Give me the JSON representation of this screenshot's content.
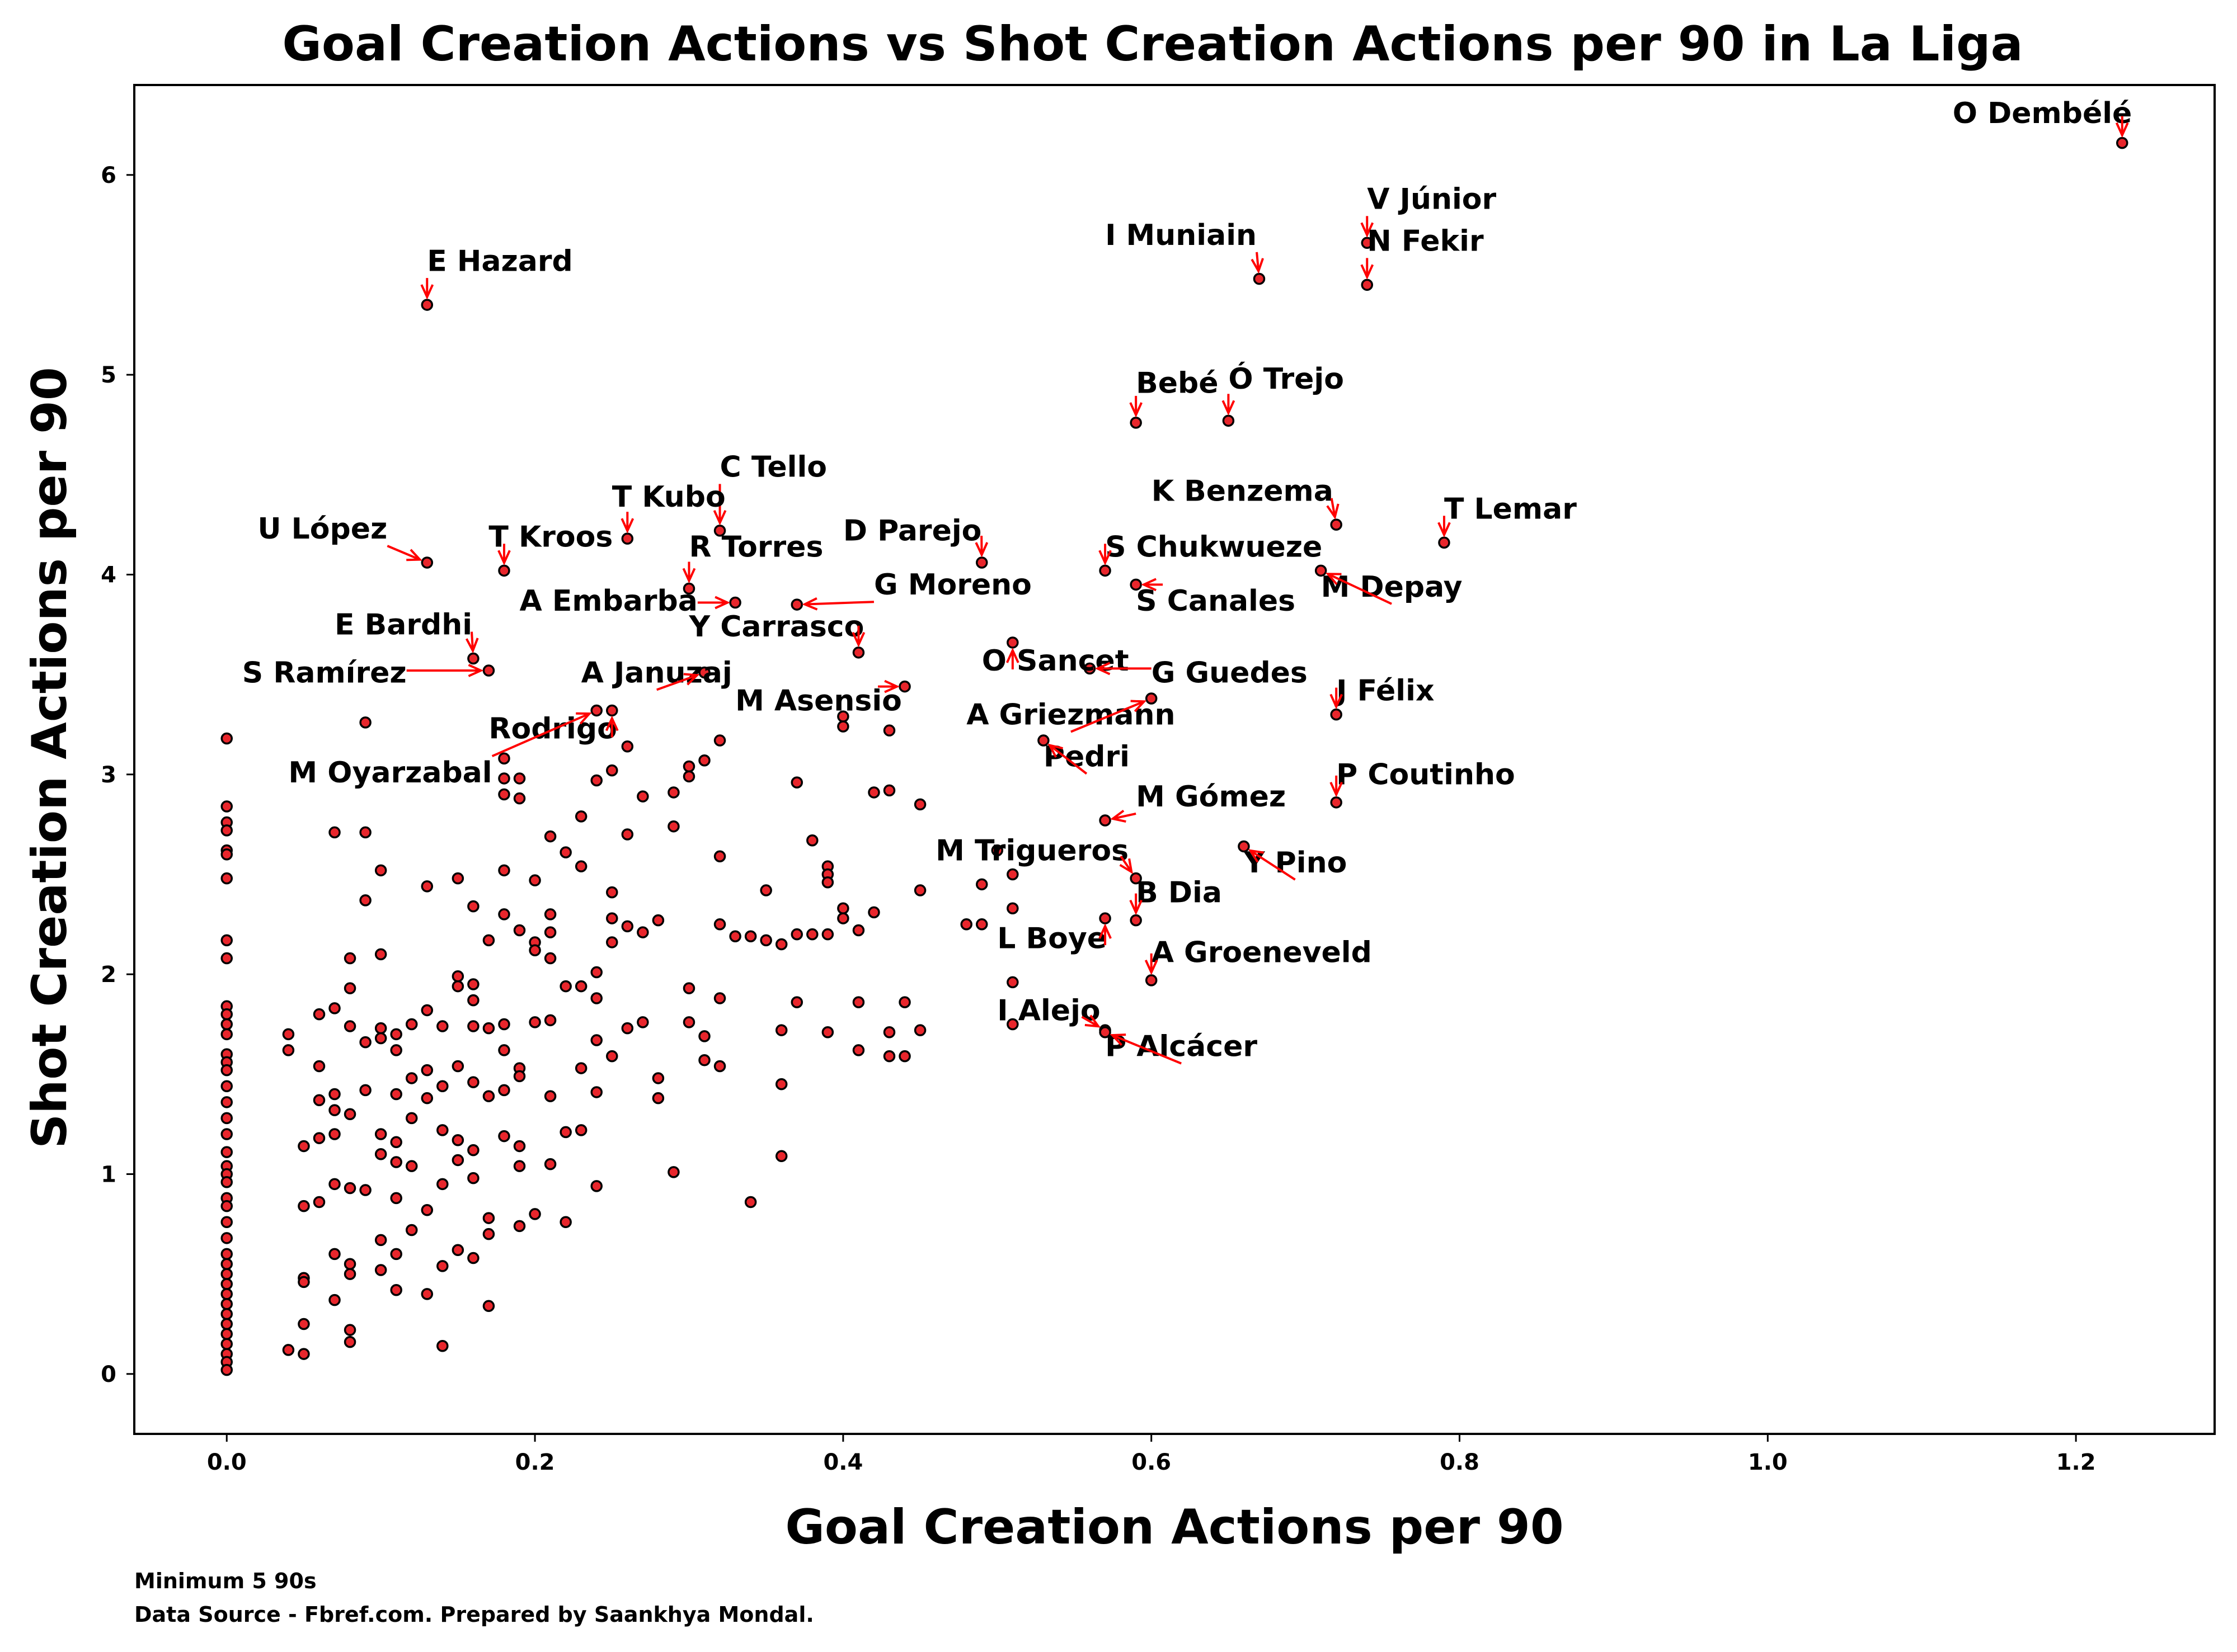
{
  "chart_data": {
    "type": "scatter",
    "title": "Goal Creation Actions vs Shot Creation Actions per 90 in La Liga",
    "xlabel": "Goal Creation Actions per 90",
    "ylabel": "Shot Creation Actions per 90",
    "xlim": [
      -0.06,
      1.29
    ],
    "ylim": [
      -0.3,
      6.45
    ],
    "xticks": [
      0.0,
      0.2,
      0.4,
      0.6,
      0.8,
      1.0,
      1.2
    ],
    "xtick_labels": [
      "0.0",
      "0.2",
      "0.4",
      "0.6",
      "0.8",
      "1.0",
      "1.2"
    ],
    "yticks": [
      0,
      1,
      2,
      3,
      4,
      5,
      6
    ],
    "ytick_labels": [
      "0",
      "1",
      "2",
      "3",
      "4",
      "5",
      "6"
    ],
    "grid": false,
    "colors": {
      "marker_fill": "#e8262c",
      "marker_edge": "#000000",
      "arrow": "#ff0000",
      "text": "#000000",
      "background": "#ffffff"
    },
    "footnotes": [
      "Minimum 5 90s",
      "Data Source - Fbref.com. Prepared by Saankhya Mondal."
    ],
    "annotations": [
      {
        "name": "O Dembélé",
        "x": 1.23,
        "y": 6.16,
        "tx": 1.12,
        "ty": 6.26
      },
      {
        "name": "V Júnior",
        "x": 0.74,
        "y": 5.66,
        "tx": 0.74,
        "ty": 5.83
      },
      {
        "name": "N Fekir",
        "x": 0.74,
        "y": 5.45,
        "tx": 0.74,
        "ty": 5.62
      },
      {
        "name": "I Muniain",
        "x": 0.67,
        "y": 5.48,
        "tx": 0.57,
        "ty": 5.65
      },
      {
        "name": "E Hazard",
        "x": 0.13,
        "y": 5.35,
        "tx": 0.13,
        "ty": 5.52
      },
      {
        "name": "Bebé",
        "x": 0.59,
        "y": 4.76,
        "tx": 0.59,
        "ty": 4.91
      },
      {
        "name": "Ó Trejo",
        "x": 0.65,
        "y": 4.77,
        "tx": 0.65,
        "ty": 4.93
      },
      {
        "name": "C Tello",
        "x": 0.32,
        "y": 4.22,
        "tx": 0.32,
        "ty": 4.49
      },
      {
        "name": "T Kubo",
        "x": 0.26,
        "y": 4.18,
        "tx": 0.25,
        "ty": 4.34
      },
      {
        "name": "K Benzema",
        "x": 0.72,
        "y": 4.25,
        "tx": 0.6,
        "ty": 4.37
      },
      {
        "name": "T Lemar",
        "x": 0.79,
        "y": 4.16,
        "tx": 0.79,
        "ty": 4.28
      },
      {
        "name": "U López",
        "x": 0.13,
        "y": 4.06,
        "tx": 0.02,
        "ty": 4.18
      },
      {
        "name": "T Kroos",
        "x": 0.18,
        "y": 4.02,
        "tx": 0.17,
        "ty": 4.14
      },
      {
        "name": "D Parejo",
        "x": 0.49,
        "y": 4.06,
        "tx": 0.4,
        "ty": 4.17
      },
      {
        "name": "S Chukwueze",
        "x": 0.57,
        "y": 4.02,
        "tx": 0.57,
        "ty": 4.09
      },
      {
        "name": "R Torres",
        "x": 0.3,
        "y": 3.93,
        "tx": 0.3,
        "ty": 4.09
      },
      {
        "name": "G Moreno",
        "x": 0.37,
        "y": 3.85,
        "tx": 0.42,
        "ty": 3.9
      },
      {
        "name": "A Embarba",
        "x": 0.33,
        "y": 3.86,
        "tx": 0.19,
        "ty": 3.82
      },
      {
        "name": "S Canales",
        "x": 0.59,
        "y": 3.95,
        "tx": 0.59,
        "ty": 3.82
      },
      {
        "name": "M Depay",
        "x": 0.71,
        "y": 4.02,
        "tx": 0.71,
        "ty": 3.89
      },
      {
        "name": "Y Carrasco",
        "x": 0.41,
        "y": 3.61,
        "tx": 0.3,
        "ty": 3.69
      },
      {
        "name": "E Bardhi",
        "x": 0.16,
        "y": 3.58,
        "tx": 0.07,
        "ty": 3.7
      },
      {
        "name": "O Sancet",
        "x": 0.51,
        "y": 3.66,
        "tx": 0.49,
        "ty": 3.52
      },
      {
        "name": "S Ramírez",
        "x": 0.17,
        "y": 3.52,
        "tx": 0.01,
        "ty": 3.46
      },
      {
        "name": "A Januzaj",
        "x": 0.31,
        "y": 3.51,
        "tx": 0.23,
        "ty": 3.46
      },
      {
        "name": "G Guedes",
        "x": 0.56,
        "y": 3.53,
        "tx": 0.6,
        "ty": 3.46
      },
      {
        "name": "M Asensio",
        "x": 0.44,
        "y": 3.44,
        "tx": 0.33,
        "ty": 3.32
      },
      {
        "name": "J Félix",
        "x": 0.72,
        "y": 3.3,
        "tx": 0.72,
        "ty": 3.37
      },
      {
        "name": "A Griezmann",
        "x": 0.6,
        "y": 3.38,
        "tx": 0.48,
        "ty": 3.25
      },
      {
        "name": "Rodrigo",
        "x": 0.25,
        "y": 3.32,
        "tx": 0.17,
        "ty": 3.18
      },
      {
        "name": "Pedri",
        "x": 0.53,
        "y": 3.17,
        "tx": 0.53,
        "ty": 3.04
      },
      {
        "name": "M Oyarzabal",
        "x": 0.24,
        "y": 3.32,
        "tx": 0.04,
        "ty": 2.96
      },
      {
        "name": "P Coutinho",
        "x": 0.72,
        "y": 2.86,
        "tx": 0.72,
        "ty": 2.95
      },
      {
        "name": "M Gómez",
        "x": 0.57,
        "y": 2.77,
        "tx": 0.59,
        "ty": 2.84
      },
      {
        "name": "M Trigueros",
        "x": 0.59,
        "y": 2.48,
        "tx": 0.46,
        "ty": 2.57
      },
      {
        "name": "Y Pino",
        "x": 0.66,
        "y": 2.64,
        "tx": 0.66,
        "ty": 2.51
      },
      {
        "name": "B Dia",
        "x": 0.59,
        "y": 2.27,
        "tx": 0.59,
        "ty": 2.36
      },
      {
        "name": "L Boye",
        "x": 0.57,
        "y": 2.28,
        "tx": 0.5,
        "ty": 2.13
      },
      {
        "name": "A Groeneveld",
        "x": 0.6,
        "y": 1.97,
        "tx": 0.6,
        "ty": 2.06
      },
      {
        "name": "I Alejo",
        "x": 0.57,
        "y": 1.72,
        "tx": 0.5,
        "ty": 1.77
      },
      {
        "name": "P Alcácer",
        "x": 0.57,
        "y": 1.71,
        "tx": 0.57,
        "ty": 1.59
      }
    ],
    "points": [
      [
        0,
        3.18
      ],
      [
        0,
        2.84
      ],
      [
        0,
        2.76
      ],
      [
        0,
        2.72
      ],
      [
        0,
        2.62
      ],
      [
        0,
        2.6
      ],
      [
        0,
        2.48
      ],
      [
        0,
        2.17
      ],
      [
        0,
        2.08
      ],
      [
        0,
        1.84
      ],
      [
        0,
        1.8
      ],
      [
        0,
        1.75
      ],
      [
        0,
        1.7
      ],
      [
        0,
        1.6
      ],
      [
        0,
        1.56
      ],
      [
        0,
        1.52
      ],
      [
        0,
        1.44
      ],
      [
        0,
        1.36
      ],
      [
        0,
        1.28
      ],
      [
        0,
        1.2
      ],
      [
        0,
        1.11
      ],
      [
        0,
        1.04
      ],
      [
        0,
        1.0
      ],
      [
        0,
        0.96
      ],
      [
        0,
        0.88
      ],
      [
        0,
        0.84
      ],
      [
        0,
        0.76
      ],
      [
        0,
        0.68
      ],
      [
        0,
        0.6
      ],
      [
        0,
        0.55
      ],
      [
        0,
        0.5
      ],
      [
        0,
        0.45
      ],
      [
        0,
        0.4
      ],
      [
        0,
        0.35
      ],
      [
        0,
        0.3
      ],
      [
        0,
        0.25
      ],
      [
        0,
        0.2
      ],
      [
        0,
        0.15
      ],
      [
        0,
        0.1
      ],
      [
        0,
        0.06
      ],
      [
        0,
        0.02
      ],
      [
        0.04,
        1.7
      ],
      [
        0.04,
        1.62
      ],
      [
        0.04,
        0.12
      ],
      [
        0.05,
        1.14
      ],
      [
        0.05,
        0.84
      ],
      [
        0.05,
        0.48
      ],
      [
        0.05,
        0.46
      ],
      [
        0.05,
        0.25
      ],
      [
        0.05,
        0.1
      ],
      [
        0.06,
        1.8
      ],
      [
        0.06,
        1.54
      ],
      [
        0.06,
        1.37
      ],
      [
        0.06,
        1.18
      ],
      [
        0.06,
        0.86
      ],
      [
        0.07,
        2.71
      ],
      [
        0.07,
        1.83
      ],
      [
        0.07,
        1.4
      ],
      [
        0.07,
        1.32
      ],
      [
        0.07,
        1.2
      ],
      [
        0.07,
        0.95
      ],
      [
        0.07,
        0.6
      ],
      [
        0.07,
        0.37
      ],
      [
        0.08,
        2.08
      ],
      [
        0.08,
        1.93
      ],
      [
        0.08,
        1.74
      ],
      [
        0.08,
        1.3
      ],
      [
        0.08,
        0.93
      ],
      [
        0.08,
        0.55
      ],
      [
        0.08,
        0.5
      ],
      [
        0.08,
        0.22
      ],
      [
        0.08,
        0.16
      ],
      [
        0.09,
        3.26
      ],
      [
        0.09,
        2.71
      ],
      [
        0.09,
        2.37
      ],
      [
        0.09,
        1.66
      ],
      [
        0.09,
        1.42
      ],
      [
        0.09,
        0.92
      ],
      [
        0.1,
        2.52
      ],
      [
        0.1,
        2.1
      ],
      [
        0.1,
        1.73
      ],
      [
        0.1,
        1.68
      ],
      [
        0.1,
        1.2
      ],
      [
        0.1,
        1.1
      ],
      [
        0.1,
        0.67
      ],
      [
        0.1,
        0.52
      ],
      [
        0.11,
        1.7
      ],
      [
        0.11,
        1.62
      ],
      [
        0.11,
        1.4
      ],
      [
        0.11,
        1.16
      ],
      [
        0.11,
        1.06
      ],
      [
        0.11,
        0.88
      ],
      [
        0.11,
        0.6
      ],
      [
        0.11,
        0.42
      ],
      [
        0.12,
        1.75
      ],
      [
        0.12,
        1.48
      ],
      [
        0.12,
        1.28
      ],
      [
        0.12,
        1.04
      ],
      [
        0.12,
        0.72
      ],
      [
        0.13,
        2.44
      ],
      [
        0.13,
        1.82
      ],
      [
        0.13,
        1.52
      ],
      [
        0.13,
        1.38
      ],
      [
        0.13,
        0.82
      ],
      [
        0.13,
        0.4
      ],
      [
        0.14,
        1.74
      ],
      [
        0.14,
        1.44
      ],
      [
        0.14,
        1.22
      ],
      [
        0.14,
        0.95
      ],
      [
        0.14,
        0.54
      ],
      [
        0.14,
        0.14
      ],
      [
        0.15,
        2.48
      ],
      [
        0.15,
        1.99
      ],
      [
        0.15,
        1.94
      ],
      [
        0.15,
        1.54
      ],
      [
        0.15,
        1.17
      ],
      [
        0.15,
        1.07
      ],
      [
        0.15,
        0.62
      ],
      [
        0.16,
        2.34
      ],
      [
        0.16,
        1.95
      ],
      [
        0.16,
        1.87
      ],
      [
        0.16,
        1.74
      ],
      [
        0.16,
        1.46
      ],
      [
        0.16,
        1.12
      ],
      [
        0.16,
        0.98
      ],
      [
        0.16,
        0.58
      ],
      [
        0.17,
        2.17
      ],
      [
        0.17,
        1.73
      ],
      [
        0.17,
        1.39
      ],
      [
        0.17,
        0.78
      ],
      [
        0.17,
        0.7
      ],
      [
        0.17,
        0.34
      ],
      [
        0.18,
        3.08
      ],
      [
        0.18,
        2.98
      ],
      [
        0.18,
        2.9
      ],
      [
        0.18,
        2.52
      ],
      [
        0.18,
        2.3
      ],
      [
        0.18,
        1.75
      ],
      [
        0.18,
        1.62
      ],
      [
        0.18,
        1.42
      ],
      [
        0.18,
        1.19
      ],
      [
        0.19,
        2.98
      ],
      [
        0.19,
        2.88
      ],
      [
        0.19,
        2.22
      ],
      [
        0.19,
        1.53
      ],
      [
        0.19,
        1.49
      ],
      [
        0.19,
        1.14
      ],
      [
        0.19,
        1.04
      ],
      [
        0.19,
        0.74
      ],
      [
        0.2,
        2.47
      ],
      [
        0.2,
        2.16
      ],
      [
        0.2,
        2.12
      ],
      [
        0.2,
        1.76
      ],
      [
        0.2,
        0.8
      ],
      [
        0.21,
        2.69
      ],
      [
        0.21,
        2.3
      ],
      [
        0.21,
        2.21
      ],
      [
        0.21,
        2.08
      ],
      [
        0.21,
        1.77
      ],
      [
        0.21,
        1.39
      ],
      [
        0.21,
        1.05
      ],
      [
        0.22,
        2.61
      ],
      [
        0.22,
        1.94
      ],
      [
        0.22,
        1.21
      ],
      [
        0.22,
        0.76
      ],
      [
        0.23,
        2.79
      ],
      [
        0.23,
        2.54
      ],
      [
        0.23,
        1.94
      ],
      [
        0.23,
        1.53
      ],
      [
        0.23,
        1.22
      ],
      [
        0.24,
        2.97
      ],
      [
        0.24,
        2.01
      ],
      [
        0.24,
        1.88
      ],
      [
        0.24,
        1.67
      ],
      [
        0.24,
        1.41
      ],
      [
        0.24,
        0.94
      ],
      [
        0.25,
        3.02
      ],
      [
        0.25,
        2.41
      ],
      [
        0.25,
        2.28
      ],
      [
        0.25,
        2.16
      ],
      [
        0.25,
        1.59
      ],
      [
        0.26,
        3.14
      ],
      [
        0.26,
        2.7
      ],
      [
        0.26,
        2.24
      ],
      [
        0.26,
        1.73
      ],
      [
        0.27,
        2.89
      ],
      [
        0.27,
        2.21
      ],
      [
        0.27,
        1.76
      ],
      [
        0.28,
        2.27
      ],
      [
        0.28,
        1.48
      ],
      [
        0.28,
        1.38
      ],
      [
        0.29,
        2.91
      ],
      [
        0.29,
        2.74
      ],
      [
        0.29,
        1.01
      ],
      [
        0.3,
        3.04
      ],
      [
        0.3,
        2.99
      ],
      [
        0.3,
        1.93
      ],
      [
        0.3,
        1.76
      ],
      [
        0.31,
        3.07
      ],
      [
        0.31,
        1.69
      ],
      [
        0.31,
        1.57
      ],
      [
        0.32,
        3.17
      ],
      [
        0.32,
        2.59
      ],
      [
        0.32,
        2.25
      ],
      [
        0.32,
        1.88
      ],
      [
        0.32,
        1.54
      ],
      [
        0.33,
        2.19
      ],
      [
        0.34,
        2.19
      ],
      [
        0.34,
        0.86
      ],
      [
        0.35,
        2.42
      ],
      [
        0.35,
        2.17
      ],
      [
        0.36,
        2.15
      ],
      [
        0.36,
        1.72
      ],
      [
        0.36,
        1.45
      ],
      [
        0.36,
        1.09
      ],
      [
        0.37,
        2.96
      ],
      [
        0.37,
        2.2
      ],
      [
        0.37,
        1.86
      ],
      [
        0.38,
        2.67
      ],
      [
        0.38,
        2.2
      ],
      [
        0.39,
        2.54
      ],
      [
        0.39,
        2.5
      ],
      [
        0.39,
        2.46
      ],
      [
        0.39,
        2.2
      ],
      [
        0.39,
        1.71
      ],
      [
        0.4,
        3.29
      ],
      [
        0.4,
        3.24
      ],
      [
        0.4,
        2.33
      ],
      [
        0.4,
        2.28
      ],
      [
        0.41,
        2.22
      ],
      [
        0.41,
        1.86
      ],
      [
        0.41,
        1.62
      ],
      [
        0.42,
        2.91
      ],
      [
        0.42,
        2.31
      ],
      [
        0.43,
        3.22
      ],
      [
        0.43,
        2.92
      ],
      [
        0.43,
        1.71
      ],
      [
        0.43,
        1.59
      ],
      [
        0.44,
        1.86
      ],
      [
        0.44,
        1.59
      ],
      [
        0.45,
        2.85
      ],
      [
        0.45,
        2.42
      ],
      [
        0.45,
        1.72
      ],
      [
        0.48,
        2.25
      ],
      [
        0.49,
        2.45
      ],
      [
        0.49,
        2.25
      ],
      [
        0.5,
        2.62
      ],
      [
        0.51,
        2.5
      ],
      [
        0.51,
        2.33
      ],
      [
        0.51,
        1.96
      ],
      [
        0.51,
        1.75
      ]
    ]
  }
}
